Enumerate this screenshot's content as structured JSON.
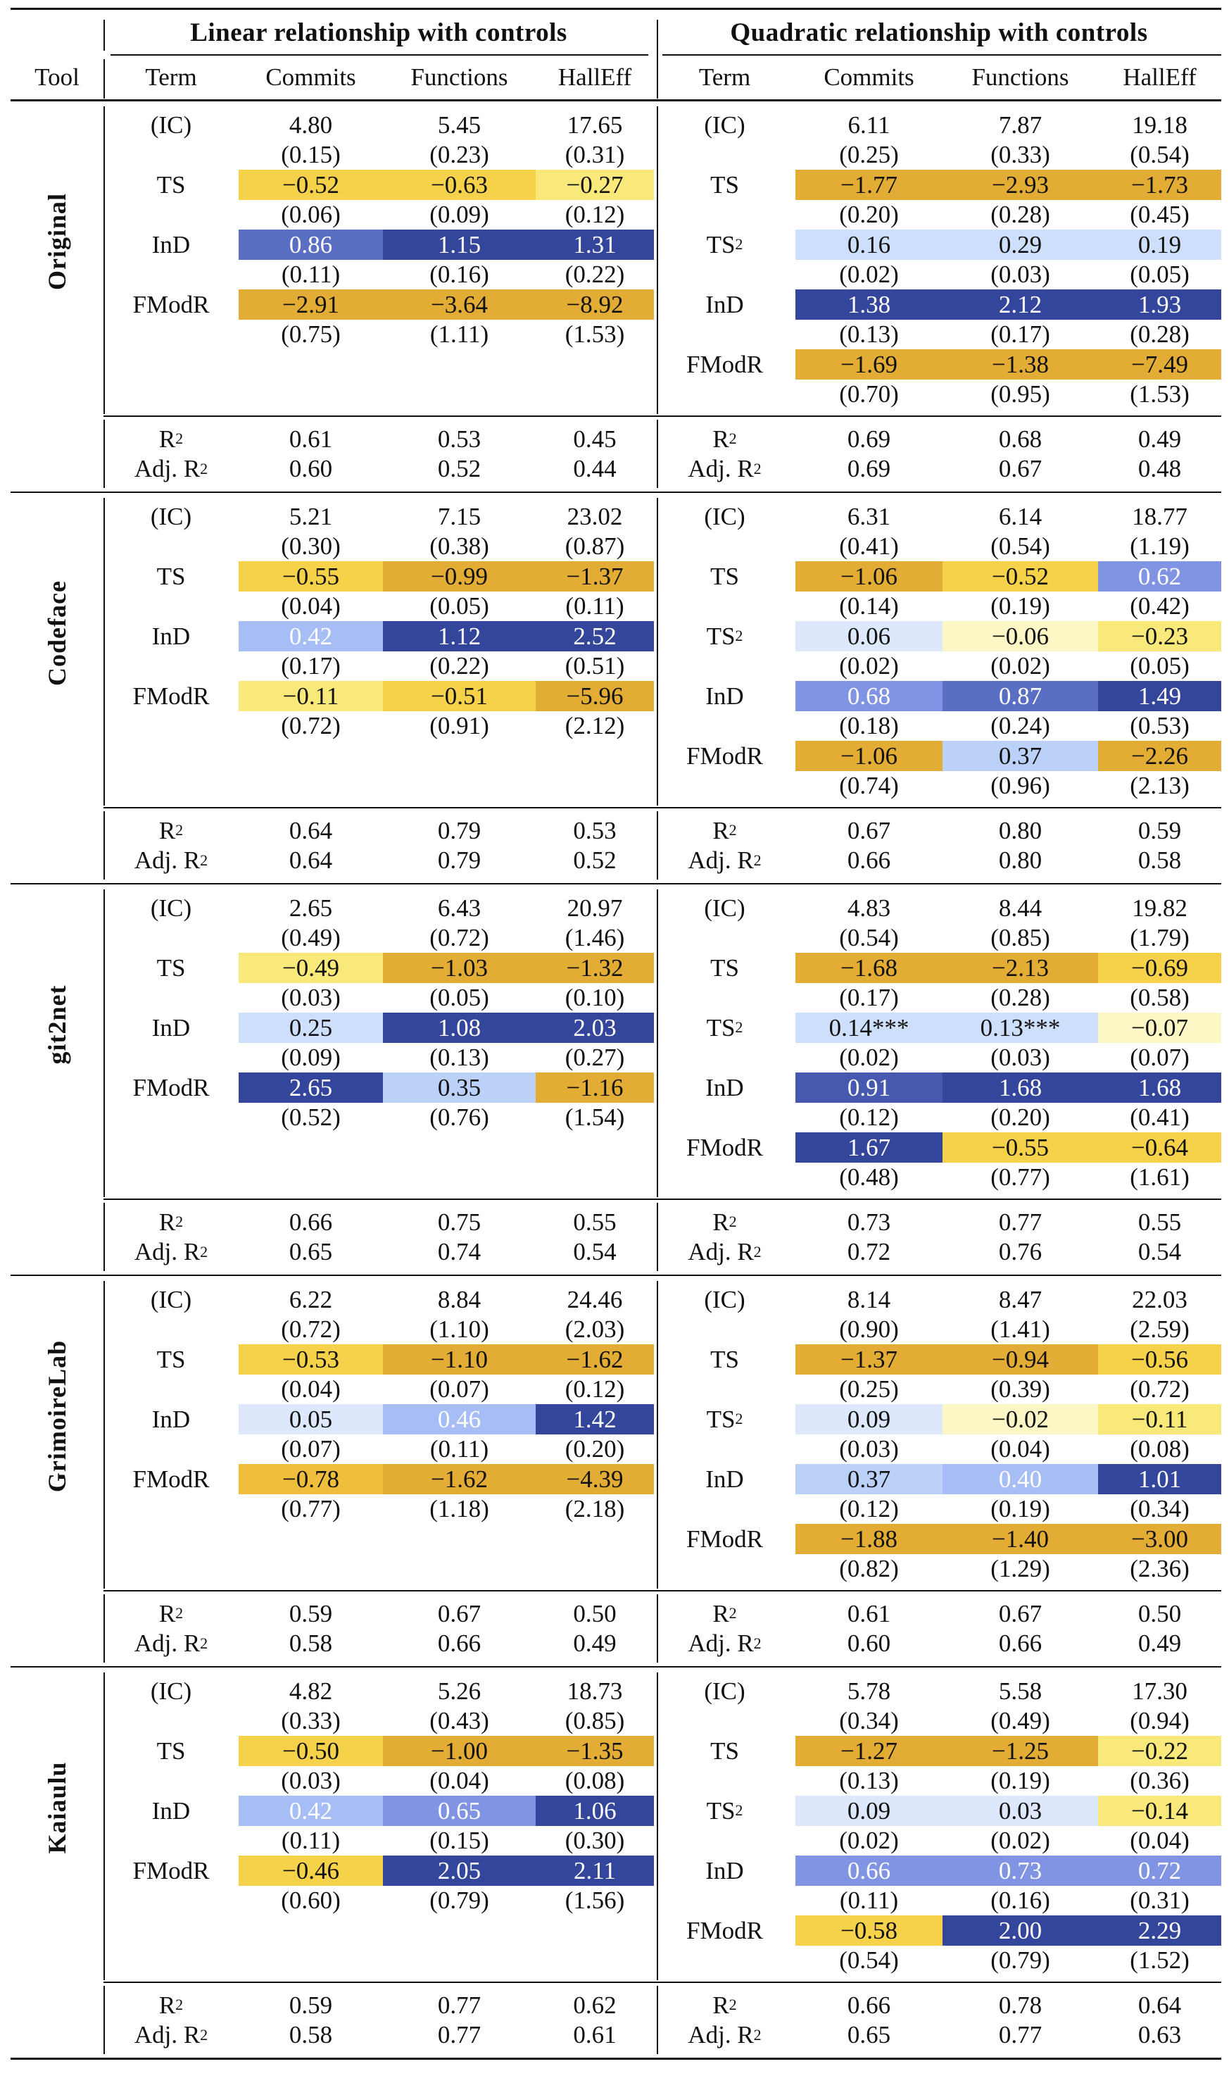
{
  "header": {
    "linear_title": "Linear relationship with controls",
    "quadratic_title": "Quadratic relationship with controls",
    "tool": "Tool",
    "term": "Term",
    "columns": [
      "Commits",
      "Functions",
      "HallEff"
    ]
  },
  "palette": {
    "Y0": "#fdf7c6",
    "Y1": "#f9e87a",
    "Y2": "#f6d24b",
    "Y3": "#efbe3c",
    "O": "#e3ad35",
    "B00": "#dde8fc",
    "B0": "#cddffb",
    "B05": "#bcd1f8",
    "B1": "#a6bdf5",
    "B2": "#8194e4",
    "B3": "#5a6ec4",
    "B35": "#4659ae",
    "B4": "#34469b"
  },
  "dark_text_shades": [
    "Y0",
    "Y1",
    "Y2",
    "Y3",
    "O",
    "B00",
    "B0",
    "B05"
  ],
  "stat_labels": {
    "r2": "R",
    "r2_sup": "2",
    "adj": "Adj. R",
    "adj_sup": "2"
  },
  "tools": [
    {
      "name": "Original",
      "linear": {
        "rows": [
          {
            "term": "(IC)",
            "v": [
              "4.80",
              "5.45",
              "17.65"
            ],
            "se": [
              "(0.15)",
              "(0.23)",
              "(0.31)"
            ],
            "s": [
              "",
              "",
              ""
            ]
          },
          {
            "term": "TS",
            "v": [
              "−0.52",
              "−0.63",
              "−0.27"
            ],
            "se": [
              "(0.06)",
              "(0.09)",
              "(0.12)"
            ],
            "s": [
              "Y2",
              "Y2",
              "Y1"
            ]
          },
          {
            "term": "InD",
            "v": [
              "0.86",
              "1.15",
              "1.31"
            ],
            "se": [
              "(0.11)",
              "(0.16)",
              "(0.22)"
            ],
            "s": [
              "B3",
              "B4",
              "B4"
            ]
          },
          {
            "term": "FModR",
            "v": [
              "−2.91",
              "−3.64",
              "−8.92"
            ],
            "se": [
              "(0.75)",
              "(1.11)",
              "(1.53)"
            ],
            "s": [
              "O",
              "O",
              "O"
            ]
          }
        ],
        "r2": [
          "0.61",
          "0.53",
          "0.45"
        ],
        "adj": [
          "0.60",
          "0.52",
          "0.44"
        ]
      },
      "quadratic": {
        "rows": [
          {
            "term": "(IC)",
            "v": [
              "6.11",
              "7.87",
              "19.18"
            ],
            "se": [
              "(0.25)",
              "(0.33)",
              "(0.54)"
            ],
            "s": [
              "",
              "",
              ""
            ]
          },
          {
            "term": "TS",
            "v": [
              "−1.77",
              "−2.93",
              "−1.73"
            ],
            "se": [
              "(0.20)",
              "(0.28)",
              "(0.45)"
            ],
            "s": [
              "O",
              "O",
              "O"
            ]
          },
          {
            "term": "TS",
            "sup": "2",
            "v": [
              "0.16",
              "0.29",
              "0.19"
            ],
            "se": [
              "(0.02)",
              "(0.03)",
              "(0.05)"
            ],
            "s": [
              "B0",
              "B0",
              "B0"
            ]
          },
          {
            "term": "InD",
            "v": [
              "1.38",
              "2.12",
              "1.93"
            ],
            "se": [
              "(0.13)",
              "(0.17)",
              "(0.28)"
            ],
            "s": [
              "B4",
              "B4",
              "B4"
            ]
          },
          {
            "term": "FModR",
            "v": [
              "−1.69",
              "−1.38",
              "−7.49"
            ],
            "se": [
              "(0.70)",
              "(0.95)",
              "(1.53)"
            ],
            "s": [
              "O",
              "O",
              "O"
            ]
          }
        ],
        "r2": [
          "0.69",
          "0.68",
          "0.49"
        ],
        "adj": [
          "0.69",
          "0.67",
          "0.48"
        ]
      }
    },
    {
      "name": "Codeface",
      "linear": {
        "rows": [
          {
            "term": "(IC)",
            "v": [
              "5.21",
              "7.15",
              "23.02"
            ],
            "se": [
              "(0.30)",
              "(0.38)",
              "(0.87)"
            ],
            "s": [
              "",
              "",
              ""
            ]
          },
          {
            "term": "TS",
            "v": [
              "−0.55",
              "−0.99",
              "−1.37"
            ],
            "se": [
              "(0.04)",
              "(0.05)",
              "(0.11)"
            ],
            "s": [
              "Y2",
              "O",
              "O"
            ]
          },
          {
            "term": "InD",
            "v": [
              "0.42",
              "1.12",
              "2.52"
            ],
            "se": [
              "(0.17)",
              "(0.22)",
              "(0.51)"
            ],
            "s": [
              "B1",
              "B4",
              "B4"
            ]
          },
          {
            "term": "FModR",
            "v": [
              "−0.11",
              "−0.51",
              "−5.96"
            ],
            "se": [
              "(0.72)",
              "(0.91)",
              "(2.12)"
            ],
            "s": [
              "Y1",
              "Y2",
              "O"
            ]
          }
        ],
        "r2": [
          "0.64",
          "0.79",
          "0.53"
        ],
        "adj": [
          "0.64",
          "0.79",
          "0.52"
        ]
      },
      "quadratic": {
        "rows": [
          {
            "term": "(IC)",
            "v": [
              "6.31",
              "6.14",
              "18.77"
            ],
            "se": [
              "(0.41)",
              "(0.54)",
              "(1.19)"
            ],
            "s": [
              "",
              "",
              ""
            ]
          },
          {
            "term": "TS",
            "v": [
              "−1.06",
              "−0.52",
              "0.62"
            ],
            "se": [
              "(0.14)",
              "(0.19)",
              "(0.42)"
            ],
            "s": [
              "O",
              "Y2",
              "B2"
            ]
          },
          {
            "term": "TS",
            "sup": "2",
            "v": [
              "0.06",
              "−0.06",
              "−0.23"
            ],
            "se": [
              "(0.02)",
              "(0.02)",
              "(0.05)"
            ],
            "s": [
              "B00",
              "Y0",
              "Y1"
            ]
          },
          {
            "term": "InD",
            "v": [
              "0.68",
              "0.87",
              "1.49"
            ],
            "se": [
              "(0.18)",
              "(0.24)",
              "(0.53)"
            ],
            "s": [
              "B2",
              "B3",
              "B4"
            ]
          },
          {
            "term": "FModR",
            "v": [
              "−1.06",
              "0.37",
              "−2.26"
            ],
            "se": [
              "(0.74)",
              "(0.96)",
              "(2.13)"
            ],
            "s": [
              "O",
              "B05",
              "O"
            ]
          }
        ],
        "r2": [
          "0.67",
          "0.80",
          "0.59"
        ],
        "adj": [
          "0.66",
          "0.80",
          "0.58"
        ]
      }
    },
    {
      "name": "git2net",
      "linear": {
        "rows": [
          {
            "term": "(IC)",
            "v": [
              "2.65",
              "6.43",
              "20.97"
            ],
            "se": [
              "(0.49)",
              "(0.72)",
              "(1.46)"
            ],
            "s": [
              "",
              "",
              ""
            ]
          },
          {
            "term": "TS",
            "v": [
              "−0.49",
              "−1.03",
              "−1.32"
            ],
            "se": [
              "(0.03)",
              "(0.05)",
              "(0.10)"
            ],
            "s": [
              "Y1",
              "O",
              "O"
            ]
          },
          {
            "term": "InD",
            "v": [
              "0.25",
              "1.08",
              "2.03"
            ],
            "se": [
              "(0.09)",
              "(0.13)",
              "(0.27)"
            ],
            "s": [
              "B0",
              "B4",
              "B4"
            ]
          },
          {
            "term": "FModR",
            "v": [
              "2.65",
              "0.35",
              "−1.16"
            ],
            "se": [
              "(0.52)",
              "(0.76)",
              "(1.54)"
            ],
            "s": [
              "B4",
              "B05",
              "O"
            ]
          }
        ],
        "r2": [
          "0.66",
          "0.75",
          "0.55"
        ],
        "adj": [
          "0.65",
          "0.74",
          "0.54"
        ]
      },
      "quadratic": {
        "rows": [
          {
            "term": "(IC)",
            "v": [
              "4.83",
              "8.44",
              "19.82"
            ],
            "se": [
              "(0.54)",
              "(0.85)",
              "(1.79)"
            ],
            "s": [
              "",
              "",
              ""
            ]
          },
          {
            "term": "TS",
            "v": [
              "−1.68",
              "−2.13",
              "−0.69"
            ],
            "se": [
              "(0.17)",
              "(0.28)",
              "(0.58)"
            ],
            "s": [
              "O",
              "O",
              "Y2"
            ]
          },
          {
            "term": "TS",
            "sup": "2",
            "v": [
              "0.14***",
              "0.13***",
              "−0.07"
            ],
            "se": [
              "(0.02)",
              "(0.03)",
              "(0.07)"
            ],
            "s": [
              "B0",
              "B0",
              "Y0"
            ]
          },
          {
            "term": "InD",
            "v": [
              "0.91",
              "1.68",
              "1.68"
            ],
            "se": [
              "(0.12)",
              "(0.20)",
              "(0.41)"
            ],
            "s": [
              "B35",
              "B4",
              "B4"
            ]
          },
          {
            "term": "FModR",
            "v": [
              "1.67",
              "−0.55",
              "−0.64"
            ],
            "se": [
              "(0.48)",
              "(0.77)",
              "(1.61)"
            ],
            "s": [
              "B4",
              "Y2",
              "Y2"
            ]
          }
        ],
        "r2": [
          "0.73",
          "0.77",
          "0.55"
        ],
        "adj": [
          "0.72",
          "0.76",
          "0.54"
        ]
      }
    },
    {
      "name": "GrimoireLab",
      "linear": {
        "rows": [
          {
            "term": "(IC)",
            "v": [
              "6.22",
              "8.84",
              "24.46"
            ],
            "se": [
              "(0.72)",
              "(1.10)",
              "(2.03)"
            ],
            "s": [
              "",
              "",
              ""
            ]
          },
          {
            "term": "TS",
            "v": [
              "−0.53",
              "−1.10",
              "−1.62"
            ],
            "se": [
              "(0.04)",
              "(0.07)",
              "(0.12)"
            ],
            "s": [
              "Y2",
              "O",
              "O"
            ]
          },
          {
            "term": "InD",
            "v": [
              "0.05",
              "0.46",
              "1.42"
            ],
            "se": [
              "(0.07)",
              "(0.11)",
              "(0.20)"
            ],
            "s": [
              "B00",
              "B1",
              "B4"
            ]
          },
          {
            "term": "FModR",
            "v": [
              "−0.78",
              "−1.62",
              "−4.39"
            ],
            "se": [
              "(0.77)",
              "(1.18)",
              "(2.18)"
            ],
            "s": [
              "Y3",
              "O",
              "O"
            ]
          }
        ],
        "r2": [
          "0.59",
          "0.67",
          "0.50"
        ],
        "adj": [
          "0.58",
          "0.66",
          "0.49"
        ]
      },
      "quadratic": {
        "rows": [
          {
            "term": "(IC)",
            "v": [
              "8.14",
              "8.47",
              "22.03"
            ],
            "se": [
              "(0.90)",
              "(1.41)",
              "(2.59)"
            ],
            "s": [
              "",
              "",
              ""
            ]
          },
          {
            "term": "TS",
            "v": [
              "−1.37",
              "−0.94",
              "−0.56"
            ],
            "se": [
              "(0.25)",
              "(0.39)",
              "(0.72)"
            ],
            "s": [
              "O",
              "O",
              "Y2"
            ]
          },
          {
            "term": "TS",
            "sup": "2",
            "v": [
              "0.09",
              "−0.02",
              "−0.11"
            ],
            "se": [
              "(0.03)",
              "(0.04)",
              "(0.08)"
            ],
            "s": [
              "B00",
              "Y0",
              "Y1"
            ]
          },
          {
            "term": "InD",
            "v": [
              "0.37",
              "0.40",
              "1.01"
            ],
            "se": [
              "(0.12)",
              "(0.19)",
              "(0.34)"
            ],
            "s": [
              "B05",
              "B1",
              "B4"
            ]
          },
          {
            "term": "FModR",
            "v": [
              "−1.88",
              "−1.40",
              "−3.00"
            ],
            "se": [
              "(0.82)",
              "(1.29)",
              "(2.36)"
            ],
            "s": [
              "O",
              "O",
              "O"
            ]
          }
        ],
        "r2": [
          "0.61",
          "0.67",
          "0.50"
        ],
        "adj": [
          "0.60",
          "0.66",
          "0.49"
        ]
      }
    },
    {
      "name": "Kaiaulu",
      "linear": {
        "rows": [
          {
            "term": "(IC)",
            "v": [
              "4.82",
              "5.26",
              "18.73"
            ],
            "se": [
              "(0.33)",
              "(0.43)",
              "(0.85)"
            ],
            "s": [
              "",
              "",
              ""
            ]
          },
          {
            "term": "TS",
            "v": [
              "−0.50",
              "−1.00",
              "−1.35"
            ],
            "se": [
              "(0.03)",
              "(0.04)",
              "(0.08)"
            ],
            "s": [
              "Y2",
              "O",
              "O"
            ]
          },
          {
            "term": "InD",
            "v": [
              "0.42",
              "0.65",
              "1.06"
            ],
            "se": [
              "(0.11)",
              "(0.15)",
              "(0.30)"
            ],
            "s": [
              "B1",
              "B2",
              "B4"
            ]
          },
          {
            "term": "FModR",
            "v": [
              "−0.46",
              "2.05",
              "2.11"
            ],
            "se": [
              "(0.60)",
              "(0.79)",
              "(1.56)"
            ],
            "s": [
              "Y2",
              "B4",
              "B4"
            ]
          }
        ],
        "r2": [
          "0.59",
          "0.77",
          "0.62"
        ],
        "adj": [
          "0.58",
          "0.77",
          "0.61"
        ]
      },
      "quadratic": {
        "rows": [
          {
            "term": "(IC)",
            "v": [
              "5.78",
              "5.58",
              "17.30"
            ],
            "se": [
              "(0.34)",
              "(0.49)",
              "(0.94)"
            ],
            "s": [
              "",
              "",
              ""
            ]
          },
          {
            "term": "TS",
            "v": [
              "−1.27",
              "−1.25",
              "−0.22"
            ],
            "se": [
              "(0.13)",
              "(0.19)",
              "(0.36)"
            ],
            "s": [
              "O",
              "O",
              "Y1"
            ]
          },
          {
            "term": "TS",
            "sup": "2",
            "v": [
              "0.09",
              "0.03",
              "−0.14"
            ],
            "se": [
              "(0.02)",
              "(0.02)",
              "(0.04)"
            ],
            "s": [
              "B00",
              "B00",
              "Y1"
            ]
          },
          {
            "term": "InD",
            "v": [
              "0.66",
              "0.73",
              "0.72"
            ],
            "se": [
              "(0.11)",
              "(0.16)",
              "(0.31)"
            ],
            "s": [
              "B2",
              "B2",
              "B2"
            ]
          },
          {
            "term": "FModR",
            "v": [
              "−0.58",
              "2.00",
              "2.29"
            ],
            "se": [
              "(0.54)",
              "(0.79)",
              "(1.52)"
            ],
            "s": [
              "Y2",
              "B4",
              "B4"
            ]
          }
        ],
        "r2": [
          "0.66",
          "0.78",
          "0.64"
        ],
        "adj": [
          "0.65",
          "0.77",
          "0.63"
        ]
      }
    }
  ]
}
